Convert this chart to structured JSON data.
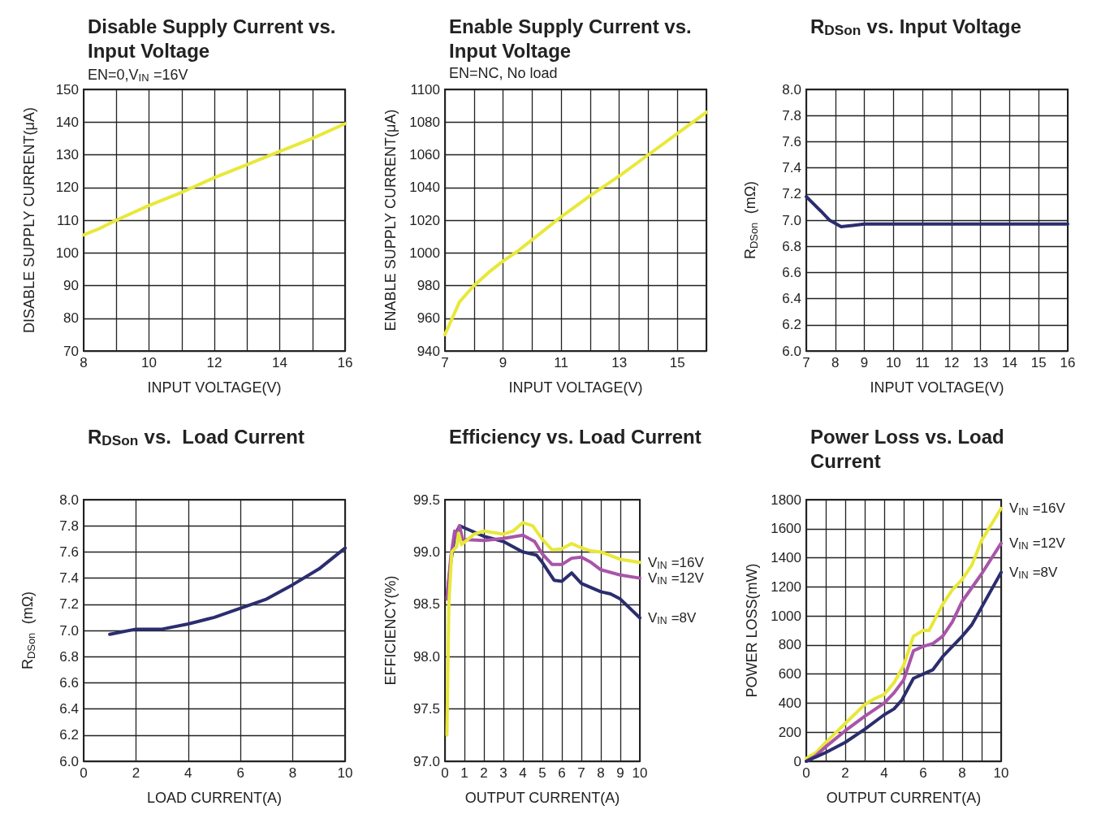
{
  "chart_data": [
    {
      "type": "line",
      "title": "Disable Supply Current vs. Input Voltage",
      "subtitle": "EN=0,V$_{IN}$=16V",
      "xlabel": "INPUT VOLTAGE(V)",
      "ylabel": "DISABLE SUPPLY CURRENT(μA)",
      "x": [
        8,
        8.5,
        9,
        10,
        11,
        12,
        13,
        14,
        15,
        16
      ],
      "series": [
        {
          "color": "#e8e83a",
          "values": [
            105.5,
            107.5,
            110,
            114.5,
            118.5,
            123,
            127,
            131,
            135,
            139.5
          ]
        }
      ],
      "xlim": [
        8,
        16
      ],
      "xticks": [
        8,
        {
          "value": 9,
          "label": null
        },
        10,
        {
          "value": 11,
          "label": null
        },
        12,
        {
          "value": 13,
          "label": null
        },
        14,
        {
          "value": 15,
          "label": null
        },
        16
      ],
      "ylim": [
        70,
        150
      ],
      "yticks": [
        70,
        80,
        90,
        100,
        110,
        120,
        130,
        140,
        150
      ],
      "grid": true
    },
    {
      "type": "line",
      "title": "Enable Supply Current vs. Input Voltage",
      "subtitle": "EN=NC, No load",
      "xlabel": "INPUT VOLTAGE(V)",
      "ylabel": "ENABLE SUPPLY CURRENT(μA)",
      "x": [
        7,
        7.5,
        8,
        8.5,
        9,
        9.5,
        10,
        11,
        12,
        13,
        14,
        15,
        16
      ],
      "series": [
        {
          "color": "#e8e83a",
          "values": [
            950,
            970,
            980,
            988,
            995,
            1001,
            1008,
            1022,
            1035,
            1047,
            1060,
            1073,
            1086
          ]
        }
      ],
      "xlim": [
        7,
        16
      ],
      "xticks": [
        7,
        {
          "value": 8,
          "label": null
        },
        9,
        {
          "value": 10,
          "label": null
        },
        11,
        {
          "value": 12,
          "label": null
        },
        13,
        {
          "value": 14,
          "label": null
        },
        15,
        {
          "value": 16,
          "label": null
        }
      ],
      "ylim": [
        940,
        1100
      ],
      "yticks": [
        940,
        960,
        980,
        1000,
        1020,
        1040,
        1060,
        1080,
        1100
      ],
      "grid": true
    },
    {
      "type": "line",
      "title": "R$_{DSon}$ vs. Input Voltage",
      "xlabel": "INPUT VOLTAGE(V)",
      "ylabel": "R$_{DSon}$ (mΩ)",
      "x": [
        7,
        7.5,
        7.8,
        8.2,
        8.6,
        9,
        10,
        11,
        12,
        13,
        14,
        15,
        16
      ],
      "series": [
        {
          "color": "#2b2d6e",
          "values": [
            7.18,
            7.07,
            7.0,
            6.95,
            6.96,
            6.97,
            6.97,
            6.97,
            6.97,
            6.97,
            6.97,
            6.97,
            6.97
          ]
        }
      ],
      "xlim": [
        7,
        16
      ],
      "xticks": [
        7,
        8,
        9,
        10,
        11,
        12,
        13,
        14,
        15,
        16
      ],
      "ylim": [
        6,
        8
      ],
      "yticks": [
        {
          "value": 6,
          "label": "6.0"
        },
        6.2,
        6.4,
        6.6,
        6.8,
        {
          "value": 7,
          "label": "7.0"
        },
        7.2,
        7.4,
        7.6,
        7.8,
        {
          "value": 8,
          "label": "8.0"
        }
      ],
      "grid": true
    },
    {
      "type": "line",
      "title": "R$_{DSon}$ vs.  Load Current",
      "xlabel": "LOAD CURRENT(A)",
      "ylabel": "R$_{DSon}$ (mΩ)",
      "x": [
        1,
        2,
        3,
        4,
        5,
        6,
        7,
        8,
        9,
        10
      ],
      "series": [
        {
          "color": "#2b2d6e",
          "values": [
            6.97,
            7.01,
            7.01,
            7.05,
            7.1,
            7.17,
            7.24,
            7.35,
            7.47,
            7.63
          ]
        }
      ],
      "xlim": [
        0,
        10
      ],
      "xticks": [
        0,
        2,
        4,
        6,
        8,
        10
      ],
      "ylim": [
        6,
        8
      ],
      "yticks": [
        {
          "value": 6,
          "label": "6.0"
        },
        6.2,
        6.4,
        6.6,
        6.8,
        {
          "value": 7,
          "label": "7.0"
        },
        7.2,
        7.4,
        7.6,
        7.8,
        {
          "value": 8,
          "label": "8.0"
        }
      ],
      "grid": true
    },
    {
      "type": "line",
      "title": "Efficiency vs. Load Current",
      "xlabel": "OUTPUT CURRENT(A)",
      "ylabel": "EFFICIENCY(%)",
      "series": [
        {
          "name": "V$_{IN}$=8V",
          "color": "#2b2d6e",
          "x": [
            0.1,
            0.3,
            0.5,
            0.75,
            1,
            2,
            3,
            4,
            4.7,
            5,
            5.6,
            6,
            6.5,
            7,
            8,
            8.5,
            9,
            10
          ],
          "values": [
            98.55,
            98.9,
            99.15,
            99.25,
            99.23,
            99.15,
            99.1,
            99.0,
            98.97,
            98.9,
            98.73,
            98.72,
            98.8,
            98.7,
            98.62,
            98.6,
            98.55,
            98.37
          ]
        },
        {
          "name": "V$_{IN}$=12V",
          "color": "#a855a8",
          "x": [
            0.1,
            0.3,
            0.5,
            0.6,
            0.75,
            0.9,
            2,
            3,
            4,
            4.6,
            5,
            5.5,
            6,
            6.5,
            7,
            7.5,
            8,
            9,
            10
          ],
          "values": [
            98.55,
            98.95,
            99.2,
            99.15,
            99.25,
            99.12,
            99.11,
            99.13,
            99.16,
            99.1,
            98.98,
            98.88,
            98.88,
            98.94,
            98.95,
            98.9,
            98.83,
            98.78,
            98.75
          ]
        },
        {
          "name": "V$_{IN}$=16V",
          "color": "#e8e83a",
          "x": [
            0.1,
            0.2,
            0.35,
            0.6,
            0.7,
            0.85,
            1.5,
            2,
            3,
            3.5,
            4,
            4.5,
            5,
            5.5,
            6,
            6.5,
            7,
            7.5,
            8,
            9,
            10
          ],
          "values": [
            97.25,
            98.5,
            99.0,
            99.05,
            99.18,
            99.07,
            99.17,
            99.2,
            99.17,
            99.2,
            99.28,
            99.25,
            99.12,
            99.02,
            99.03,
            99.08,
            99.04,
            99.01,
            99.0,
            98.93,
            98.9
          ]
        }
      ],
      "xlim": [
        0,
        10
      ],
      "xticks": [
        0,
        1,
        2,
        3,
        4,
        5,
        6,
        7,
        8,
        9,
        10
      ],
      "ylim": [
        97,
        99.5
      ],
      "yticks": [
        {
          "value": 97,
          "label": "97.0"
        },
        97.5,
        {
          "value": 98,
          "label": "98.0"
        },
        98.5,
        {
          "value": 99,
          "label": "99.0"
        },
        99.5
      ],
      "grid": true
    },
    {
      "type": "line",
      "title": "Power Loss vs. Load Current",
      "xlabel": "OUTPUT CURRENT(A)",
      "ylabel": "POWER LOSS(mW)",
      "series": [
        {
          "name": "V$_{IN}$=16V",
          "color": "#e8e83a",
          "x": [
            0,
            0.5,
            1,
            2,
            3,
            3.5,
            4,
            4.5,
            5,
            5.5,
            6,
            6.3,
            7,
            7.5,
            8,
            8.5,
            9,
            10
          ],
          "values": [
            20,
            60,
            130,
            260,
            390,
            430,
            460,
            540,
            660,
            860,
            900,
            900,
            1080,
            1180,
            1250,
            1350,
            1520,
            1740
          ]
        },
        {
          "name": "V$_{IN}$=12V",
          "color": "#a855a8",
          "x": [
            0,
            0.5,
            1,
            2,
            3,
            4,
            4.5,
            5,
            5.5,
            6,
            6.5,
            7,
            7.5,
            8,
            9,
            10
          ],
          "values": [
            0,
            40,
            100,
            210,
            310,
            400,
            470,
            560,
            760,
            790,
            810,
            860,
            960,
            1100,
            1290,
            1500
          ]
        },
        {
          "name": "V$_{IN}$=8V",
          "color": "#2b2d6e",
          "x": [
            0,
            0.5,
            1,
            2,
            3,
            4,
            4.5,
            4.9,
            5.5,
            6,
            6.5,
            7,
            8,
            8.5,
            9,
            10
          ],
          "values": [
            0,
            30,
            60,
            130,
            220,
            320,
            360,
            420,
            570,
            600,
            630,
            720,
            860,
            940,
            1060,
            1300
          ]
        }
      ],
      "xlim": [
        0,
        10
      ],
      "xticks": [
        0,
        {
          "value": 1,
          "label": null
        },
        2,
        {
          "value": 3,
          "label": null
        },
        4,
        {
          "value": 5,
          "label": null
        },
        6,
        {
          "value": 7,
          "label": null
        },
        8,
        {
          "value": 9,
          "label": null
        },
        10
      ],
      "ylim": [
        0,
        1800
      ],
      "yticks": [
        0,
        200,
        400,
        600,
        800,
        1000,
        1200,
        1400,
        1600,
        1800
      ],
      "grid": true
    }
  ]
}
